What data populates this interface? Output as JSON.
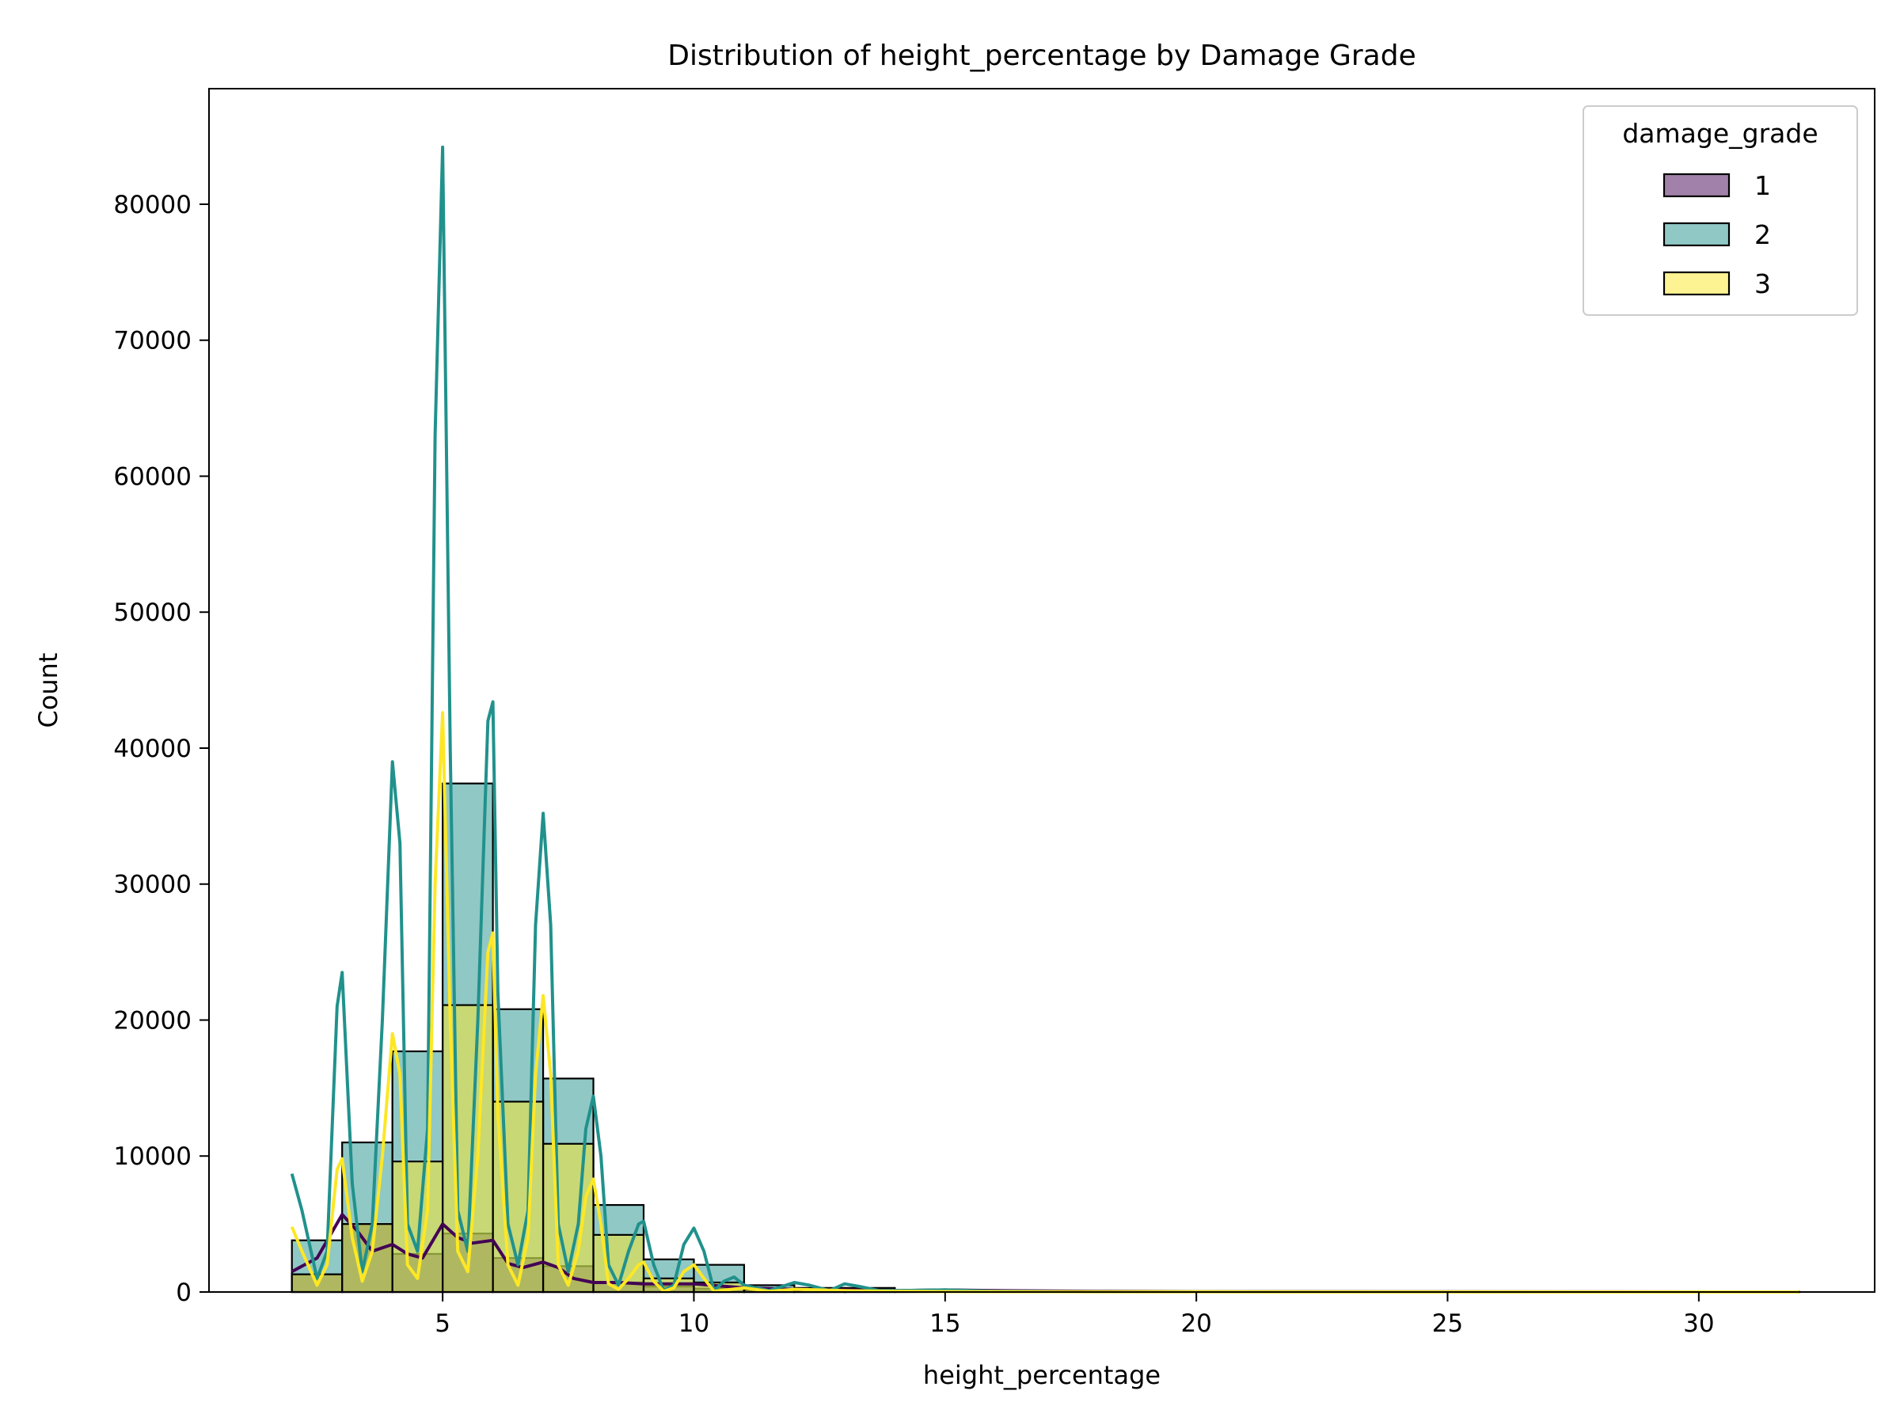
{
  "chart_data": {
    "type": "histogram",
    "title": "Distribution of height_percentage by Damage Grade",
    "xlabel": "height_percentage",
    "ylabel": "Count",
    "xlim": [
      0.35,
      33.5
    ],
    "ylim": [
      0,
      88500
    ],
    "xticks": [
      5,
      10,
      15,
      20,
      25,
      30
    ],
    "yticks": [
      0,
      10000,
      20000,
      30000,
      40000,
      50000,
      60000,
      70000,
      80000
    ],
    "legend": {
      "title": "damage_grade",
      "placement": "top-right"
    },
    "bin_edges": [
      2,
      3,
      4,
      5,
      6,
      7,
      8,
      9,
      10,
      11,
      12,
      13,
      14,
      15,
      16,
      17,
      18,
      19,
      20,
      21,
      22,
      23,
      24,
      25,
      26,
      27,
      28,
      29,
      30,
      31,
      32
    ],
    "series": [
      {
        "name": "1",
        "color": "#440154",
        "fill": "rgba(68,1,84,0.5)",
        "counts": [
          1300,
          5000,
          2800,
          4300,
          2500,
          1900,
          700,
          400,
          250,
          150,
          100,
          80,
          80,
          50,
          40,
          30,
          30,
          20,
          20,
          10,
          10,
          10,
          10,
          10,
          10,
          10,
          10,
          10,
          10,
          10
        ],
        "kde": {
          "x": [
            2,
            2.5,
            3,
            3.3,
            3.6,
            4,
            4.3,
            4.6,
            5,
            5.3,
            5.6,
            6,
            6.3,
            6.6,
            7,
            7.3,
            7.6,
            8,
            8.5,
            9,
            10,
            11,
            12,
            13,
            14,
            15,
            16,
            18,
            20,
            25,
            32
          ],
          "y": [
            1500,
            2500,
            5700,
            4500,
            3000,
            3500,
            2800,
            2500,
            5000,
            4000,
            3600,
            3800,
            2100,
            1800,
            2200,
            1800,
            1000,
            700,
            700,
            600,
            600,
            300,
            200,
            150,
            100,
            150,
            100,
            50,
            30,
            10,
            0
          ]
        }
      },
      {
        "name": "2",
        "color": "#21918c",
        "fill": "rgba(33,145,140,0.5)",
        "counts": [
          3800,
          11000,
          17700,
          37400,
          20800,
          15700,
          6400,
          2400,
          2000,
          500,
          300,
          300,
          100,
          50,
          40,
          30,
          30,
          20,
          20,
          10,
          10,
          10,
          10,
          10,
          10,
          10,
          10,
          10,
          10,
          10
        ],
        "kde": {
          "x": [
            2,
            2.2,
            2.5,
            2.7,
            2.9,
            3,
            3.2,
            3.4,
            3.6,
            3.8,
            4,
            4.15,
            4.3,
            4.5,
            4.7,
            4.85,
            5,
            5.15,
            5.3,
            5.5,
            5.7,
            5.9,
            6,
            6.1,
            6.3,
            6.5,
            6.7,
            6.85,
            7,
            7.15,
            7.3,
            7.5,
            7.7,
            7.85,
            8,
            8.15,
            8.3,
            8.5,
            8.7,
            8.9,
            9,
            9.2,
            9.4,
            9.6,
            9.8,
            10,
            10.2,
            10.4,
            10.6,
            10.8,
            11,
            11.5,
            12,
            12.3,
            12.7,
            13,
            13.3,
            13.7,
            14,
            15,
            16,
            18,
            20,
            25,
            32
          ],
          "y": [
            8700,
            6000,
            1000,
            3000,
            21000,
            23500,
            8000,
            1500,
            5000,
            20000,
            39000,
            33000,
            5000,
            3000,
            12000,
            63000,
            84200,
            40000,
            6000,
            3000,
            20000,
            42000,
            43400,
            22000,
            5000,
            2000,
            6000,
            27000,
            35200,
            27000,
            5000,
            1500,
            5000,
            12000,
            14400,
            10000,
            2000,
            500,
            3000,
            5000,
            5200,
            2000,
            100,
            500,
            3500,
            4700,
            3000,
            100,
            800,
            1100,
            500,
            100,
            700,
            500,
            100,
            600,
            400,
            100,
            100,
            150,
            50,
            20,
            10,
            5,
            0
          ]
        }
      },
      {
        "name": "3",
        "color": "#fde725",
        "fill": "rgba(253,231,37,0.5)",
        "counts": [
          1300,
          5000,
          9600,
          21100,
          14000,
          10900,
          4200,
          1000,
          700,
          200,
          100,
          100,
          50,
          30,
          20,
          20,
          10,
          10,
          10,
          10,
          10,
          10,
          10,
          10,
          10,
          10,
          10,
          10,
          10,
          20
        ],
        "kde": {
          "x": [
            2,
            2.2,
            2.5,
            2.7,
            2.9,
            3,
            3.2,
            3.4,
            3.6,
            3.8,
            4,
            4.15,
            4.3,
            4.5,
            4.7,
            4.85,
            5,
            5.15,
            5.3,
            5.5,
            5.7,
            5.9,
            6,
            6.1,
            6.3,
            6.5,
            6.7,
            6.85,
            7,
            7.15,
            7.3,
            7.5,
            7.7,
            7.85,
            8,
            8.15,
            8.3,
            8.5,
            8.7,
            8.9,
            9,
            9.2,
            9.4,
            9.6,
            9.8,
            10,
            10.2,
            10.4,
            11,
            11.5,
            12,
            13,
            14,
            15,
            20,
            25,
            32
          ],
          "y": [
            4800,
            3000,
            500,
            2000,
            9000,
            9800,
            4000,
            800,
            3000,
            10000,
            19000,
            16000,
            2000,
            1000,
            6000,
            30000,
            42600,
            20000,
            3000,
            1500,
            10000,
            25000,
            26400,
            13000,
            2000,
            500,
            4000,
            16000,
            21800,
            16000,
            2000,
            500,
            3000,
            7000,
            8300,
            5000,
            600,
            200,
            1000,
            2000,
            2200,
            800,
            50,
            300,
            1500,
            2000,
            1000,
            50,
            300,
            50,
            200,
            100,
            50,
            30,
            10,
            5,
            0
          ]
        }
      }
    ]
  }
}
